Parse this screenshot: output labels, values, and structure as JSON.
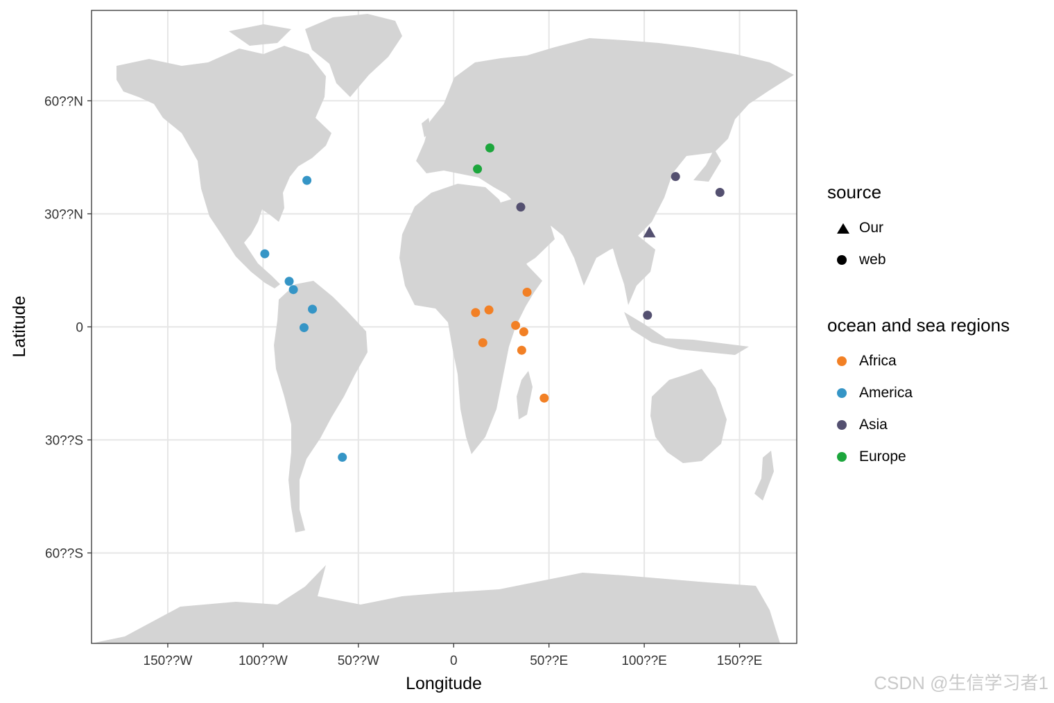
{
  "chart_data": {
    "type": "scatter",
    "title": "",
    "xlabel": "Longitude",
    "ylabel": "Latitude",
    "xlim": [
      -190,
      180
    ],
    "ylim": [
      -84,
      84
    ],
    "x_ticks": [
      {
        "value": -150,
        "label": "150??W"
      },
      {
        "value": -100,
        "label": "100??W"
      },
      {
        "value": -50,
        "label": "50??W"
      },
      {
        "value": 0,
        "label": "0"
      },
      {
        "value": 50,
        "label": "50??E"
      },
      {
        "value": 100,
        "label": "100??E"
      },
      {
        "value": 150,
        "label": "150??E"
      }
    ],
    "y_ticks": [
      {
        "value": 60,
        "label": "60??N"
      },
      {
        "value": 30,
        "label": "30??N"
      },
      {
        "value": 0,
        "label": "0"
      },
      {
        "value": -30,
        "label": "30??S"
      },
      {
        "value": -60,
        "label": "60??S"
      }
    ],
    "grid": true,
    "legend_position": "right",
    "legends": {
      "source": {
        "title": "source",
        "items": [
          {
            "label": "Our",
            "shape": "triangle"
          },
          {
            "label": "web",
            "shape": "circle"
          }
        ]
      },
      "region": {
        "title": "ocean and sea regions",
        "items": [
          {
            "label": "Africa",
            "color": "#F28025"
          },
          {
            "label": "America",
            "color": "#3595C6"
          },
          {
            "label": "Asia",
            "color": "#545070"
          },
          {
            "label": "Europe",
            "color": "#1CA63C"
          }
        ]
      }
    },
    "points": [
      {
        "lon": 11.5,
        "lat": 3.8,
        "region": "Africa",
        "source": "web"
      },
      {
        "lon": 18.5,
        "lat": 4.5,
        "region": "Africa",
        "source": "web"
      },
      {
        "lon": 38.5,
        "lat": 9.2,
        "region": "Africa",
        "source": "web"
      },
      {
        "lon": 32.5,
        "lat": 0.4,
        "region": "Africa",
        "source": "web"
      },
      {
        "lon": 36.8,
        "lat": -1.3,
        "region": "Africa",
        "source": "web"
      },
      {
        "lon": 15.3,
        "lat": -4.2,
        "region": "Africa",
        "source": "web"
      },
      {
        "lon": 35.7,
        "lat": -6.2,
        "region": "Africa",
        "source": "web"
      },
      {
        "lon": 47.5,
        "lat": -18.9,
        "region": "Africa",
        "source": "web"
      },
      {
        "lon": -77.0,
        "lat": 38.9,
        "region": "America",
        "source": "web"
      },
      {
        "lon": -99.1,
        "lat": 19.4,
        "region": "America",
        "source": "web"
      },
      {
        "lon": -86.3,
        "lat": 12.1,
        "region": "America",
        "source": "web"
      },
      {
        "lon": -84.1,
        "lat": 9.9,
        "region": "America",
        "source": "web"
      },
      {
        "lon": -74.1,
        "lat": 4.7,
        "region": "America",
        "source": "web"
      },
      {
        "lon": -78.5,
        "lat": -0.2,
        "region": "America",
        "source": "web"
      },
      {
        "lon": -58.4,
        "lat": -34.6,
        "region": "America",
        "source": "web"
      },
      {
        "lon": 116.4,
        "lat": 39.9,
        "region": "Asia",
        "source": "web"
      },
      {
        "lon": 139.7,
        "lat": 35.7,
        "region": "Asia",
        "source": "web"
      },
      {
        "lon": 35.2,
        "lat": 31.8,
        "region": "Asia",
        "source": "web"
      },
      {
        "lon": 101.7,
        "lat": 3.1,
        "region": "Asia",
        "source": "web"
      },
      {
        "lon": 102.7,
        "lat": 25.0,
        "region": "Asia",
        "source": "Our"
      },
      {
        "lon": 19.0,
        "lat": 47.5,
        "region": "Europe",
        "source": "web"
      },
      {
        "lon": 12.5,
        "lat": 41.9,
        "region": "Europe",
        "source": "web"
      }
    ]
  },
  "watermark": "CSDN @生信学习者1"
}
